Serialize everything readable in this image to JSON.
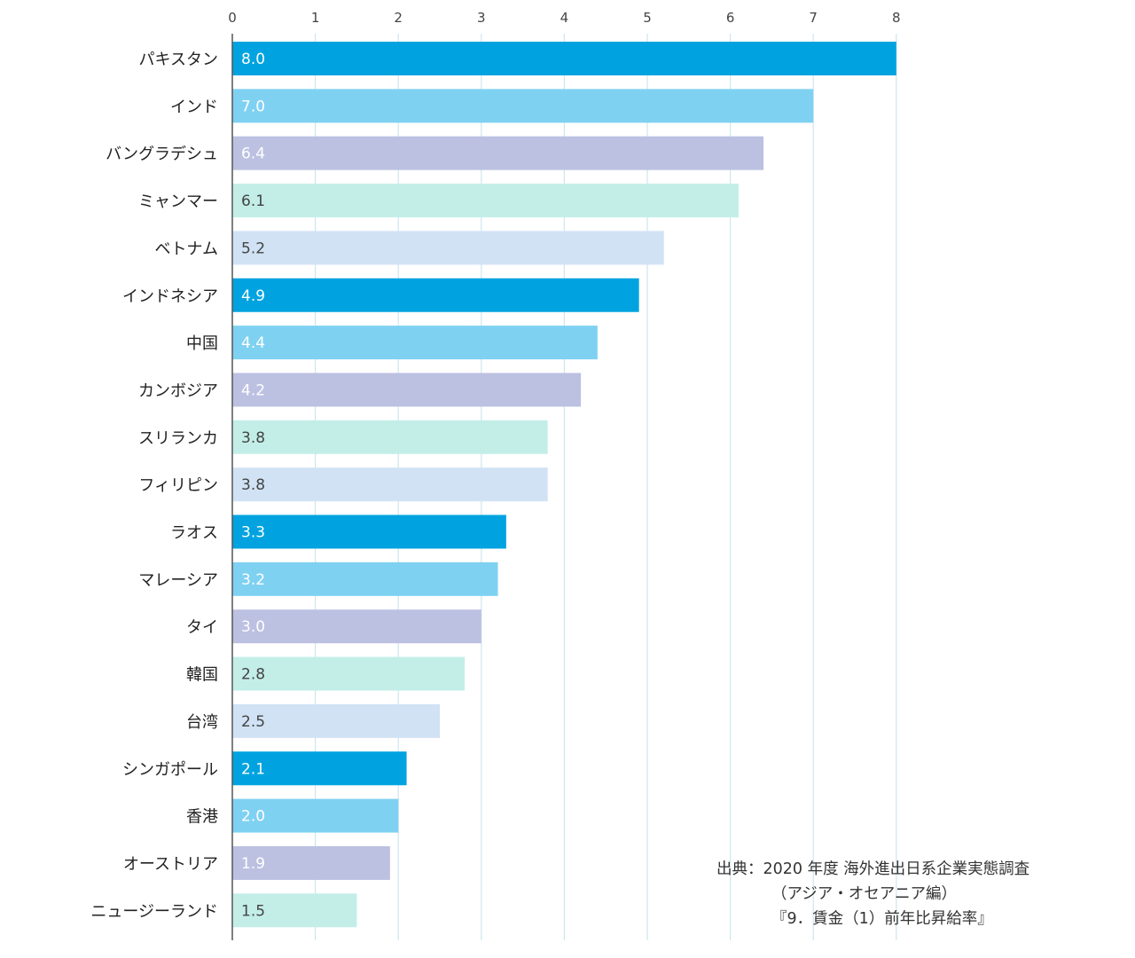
{
  "chart_data": {
    "type": "bar",
    "orientation": "horizontal",
    "title": "",
    "xlabel": "",
    "ylabel": "",
    "xlim": [
      0,
      8
    ],
    "ticks": [
      0,
      1,
      2,
      3,
      4,
      5,
      6,
      7,
      8
    ],
    "grid": true,
    "categories": [
      "パキスタン",
      "インド",
      "バングラデシュ",
      "ミャンマー",
      "ベトナム",
      "インドネシア",
      "中国",
      "カンボジア",
      "スリランカ",
      "フィリピン",
      "ラオス",
      "マレーシア",
      "タイ",
      "韓国",
      "台湾",
      "シンガポール",
      "香港",
      "オーストリア",
      "ニュージーランド"
    ],
    "values": [
      8.0,
      7.0,
      6.4,
      6.1,
      5.2,
      4.9,
      4.4,
      4.2,
      3.8,
      3.8,
      3.3,
      3.2,
      3.0,
      2.8,
      2.5,
      2.1,
      2.0,
      1.9,
      1.5
    ],
    "value_labels": [
      "8.0",
      "7.0",
      "6.4",
      "6.1",
      "5.2",
      "4.9",
      "4.4",
      "4.2",
      "3.8",
      "3.8",
      "3.3",
      "3.2",
      "3.0",
      "2.8",
      "2.5",
      "2.1",
      "2.0",
      "1.9",
      "1.5"
    ],
    "colors": [
      "#00a3e0",
      "#7fd1f2",
      "#bcc1e2",
      "#c3eee8",
      "#d1e2f5"
    ],
    "label_colors": [
      "#ffffff",
      "#ffffff",
      "#ffffff",
      "#444444",
      "#444444"
    ],
    "grid_color": "#cde6ee",
    "axis_color": "#555555"
  },
  "source": {
    "line1": "出典：2020 年度 海外進出日系企業実態調査",
    "line2": "（アジア・オセアニア編）",
    "line3": "『9．賃金（1）前年比昇給率』"
  }
}
